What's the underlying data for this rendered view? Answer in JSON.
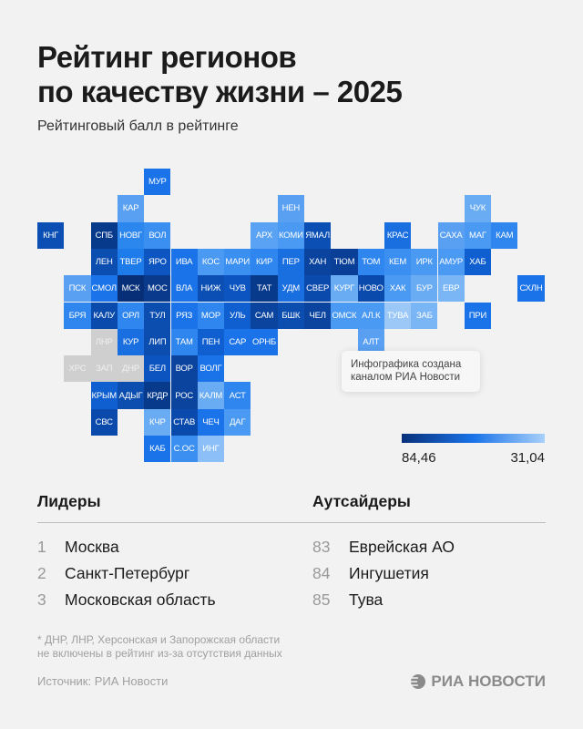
{
  "header": {
    "title_line1": "Рейтинг регионов",
    "title_line2": "по качеству жизни – 2025",
    "subtitle": "Рейтинговый балл в рейтинге"
  },
  "chart_data": {
    "type": "heatmap",
    "legend": {
      "max_label": "84,46",
      "min_label": "31,04",
      "color_high": "#08307a",
      "color_low": "#a8d0fa"
    },
    "no_data_color": "#cfcfcf",
    "tiles": [
      {
        "code": "МУР",
        "color": "#1a73e8"
      },
      {
        "code": "КАР",
        "color": "#5aa0f2"
      },
      {
        "code": "НЕН",
        "color": "#5aa0f2"
      },
      {
        "code": "ЧУК",
        "color": "#6aacf4"
      },
      {
        "code": "КНГ",
        "color": "#0b4fb5"
      },
      {
        "code": "СПБ",
        "color": "#083a8c"
      },
      {
        "code": "НОВГ",
        "color": "#2b86ee"
      },
      {
        "code": "ВОЛ",
        "color": "#3a8ff0"
      },
      {
        "code": "АРХ",
        "color": "#5aa2f3"
      },
      {
        "code": "КОМИ",
        "color": "#4a99f2"
      },
      {
        "code": "ЯМАЛ",
        "color": "#0b4fb5"
      },
      {
        "code": "КРАС",
        "color": "#1a6fe0"
      },
      {
        "code": "САХА",
        "color": "#5aa0f2"
      },
      {
        "code": "МАГ",
        "color": "#4a99f2"
      },
      {
        "code": "КАМ",
        "color": "#2e86ee"
      },
      {
        "code": "ЛЕН",
        "color": "#0c4db0"
      },
      {
        "code": "ТВЕР",
        "color": "#1e7bea"
      },
      {
        "code": "ЯРО",
        "color": "#0d55c0"
      },
      {
        "code": "ИВА",
        "color": "#1a73e8"
      },
      {
        "code": "КОС",
        "color": "#4a99f2"
      },
      {
        "code": "МАРИ",
        "color": "#3a8ff0"
      },
      {
        "code": "КИР",
        "color": "#2e86ee"
      },
      {
        "code": "ПЕР",
        "color": "#1a6fe0"
      },
      {
        "code": "ХАН",
        "color": "#0a449f"
      },
      {
        "code": "ТЮМ",
        "color": "#0a3f98"
      },
      {
        "code": "ТОМ",
        "color": "#2e86ee"
      },
      {
        "code": "КЕМ",
        "color": "#3a8ff0"
      },
      {
        "code": "ИРК",
        "color": "#4a99f2"
      },
      {
        "code": "АМУР",
        "color": "#4a99f2"
      },
      {
        "code": "ХАБ",
        "color": "#0f5fd0"
      },
      {
        "code": "ПСК",
        "color": "#5aa0f2"
      },
      {
        "code": "СМОЛ",
        "color": "#1a73e8"
      },
      {
        "code": "МСК",
        "color": "#072f78"
      },
      {
        "code": "МОС",
        "color": "#0a3a8c"
      },
      {
        "code": "ВЛА",
        "color": "#1a73e8"
      },
      {
        "code": "НИЖ",
        "color": "#0b4fb5"
      },
      {
        "code": "ЧУВ",
        "color": "#0c55c0"
      },
      {
        "code": "ТАТ",
        "color": "#083a8c"
      },
      {
        "code": "УДМ",
        "color": "#1a6fe0"
      },
      {
        "code": "СВЕР",
        "color": "#0b4aad"
      },
      {
        "code": "КУРГ",
        "color": "#6aacf4"
      },
      {
        "code": "НОВО",
        "color": "#0b4aad"
      },
      {
        "code": "ХАК",
        "color": "#4a99f2"
      },
      {
        "code": "БУР",
        "color": "#6aacf4"
      },
      {
        "code": "ЕВР",
        "color": "#7ab5f5"
      },
      {
        "code": "СХЛН",
        "color": "#1a73e8"
      },
      {
        "code": "БРЯ",
        "color": "#2e86ee"
      },
      {
        "code": "КАЛУ",
        "color": "#0b4aad"
      },
      {
        "code": "ОРЛ",
        "color": "#2e86ee"
      },
      {
        "code": "ТУЛ",
        "color": "#0c4db0"
      },
      {
        "code": "РЯЗ",
        "color": "#1a73e8"
      },
      {
        "code": "МОР",
        "color": "#2e86ee"
      },
      {
        "code": "УЛЬ",
        "color": "#0f5fd0"
      },
      {
        "code": "САМ",
        "color": "#0a449f"
      },
      {
        "code": "БШК",
        "color": "#0c4db0"
      },
      {
        "code": "ЧЕЛ",
        "color": "#0a449f"
      },
      {
        "code": "ОМСК",
        "color": "#4a99f2"
      },
      {
        "code": "АЛ.К",
        "color": "#4a99f2"
      },
      {
        "code": "ТУВА",
        "color": "#9cc8f8"
      },
      {
        "code": "ЗАБ",
        "color": "#7ab5f5"
      },
      {
        "code": "ПРИ",
        "color": "#1a73e8"
      },
      {
        "code": "ЛНР",
        "color": "#cfcfcf"
      },
      {
        "code": "КУР",
        "color": "#1a6fe0"
      },
      {
        "code": "ЛИП",
        "color": "#0c4db0"
      },
      {
        "code": "ТАМ",
        "color": "#2e86ee"
      },
      {
        "code": "ПЕН",
        "color": "#0f5fd0"
      },
      {
        "code": "САР",
        "color": "#1a73e8"
      },
      {
        "code": "ОРНБ",
        "color": "#1a73e8"
      },
      {
        "code": "АЛТ",
        "color": "#5aa0f2"
      },
      {
        "code": "ХРС",
        "color": "#cfcfcf"
      },
      {
        "code": "ЗАП",
        "color": "#cfcfcf"
      },
      {
        "code": "ДНР",
        "color": "#cfcfcf"
      },
      {
        "code": "БЕЛ",
        "color": "#0c55c0"
      },
      {
        "code": "ВОР",
        "color": "#0a449f"
      },
      {
        "code": "ВОЛГ",
        "color": "#1a73e8"
      },
      {
        "code": "КРЫМ",
        "color": "#0f5fd0"
      },
      {
        "code": "АДЫГ",
        "color": "#0c4db0"
      },
      {
        "code": "КРДР",
        "color": "#083a8c"
      },
      {
        "code": "РОС",
        "color": "#0a449f"
      },
      {
        "code": "КАЛМ",
        "color": "#6aacf4"
      },
      {
        "code": "АСТ",
        "color": "#2e86ee"
      },
      {
        "code": "СВС",
        "color": "#0b4aad"
      },
      {
        "code": "КЧР",
        "color": "#6aacf4"
      },
      {
        "code": "СТАВ",
        "color": "#0b4aad"
      },
      {
        "code": "ЧЕЧ",
        "color": "#1a73e8"
      },
      {
        "code": "ДАГ",
        "color": "#4a99f2"
      },
      {
        "code": "КАБ",
        "color": "#1a73e8"
      },
      {
        "code": "С.ОС",
        "color": "#3a8ff0"
      },
      {
        "code": "ИНГ",
        "color": "#8cbff7"
      }
    ]
  },
  "note": {
    "line1": "Инфографика создана",
    "line2": "каналом РИА Новости"
  },
  "leaders": {
    "heading": "Лидеры",
    "items": [
      {
        "rank": "1",
        "name": "Москва"
      },
      {
        "rank": "2",
        "name": "Санкт-Петербург"
      },
      {
        "rank": "3",
        "name": "Московская область"
      }
    ]
  },
  "outsiders": {
    "heading": "Аутсайдеры",
    "items": [
      {
        "rank": "83",
        "name": "Еврейская АО"
      },
      {
        "rank": "84",
        "name": "Ингушетия"
      },
      {
        "rank": "85",
        "name": "Тува"
      }
    ]
  },
  "footnote": {
    "line1": "* ДНР, ЛНР, Херсонская и Запорожская области",
    "line2": "не включены в рейтинг из-за отсутствия данных"
  },
  "source": "Источник: РИА Новости",
  "logo": {
    "text": "РИА НОВОСТИ",
    "icon": "ria-globe-icon"
  }
}
